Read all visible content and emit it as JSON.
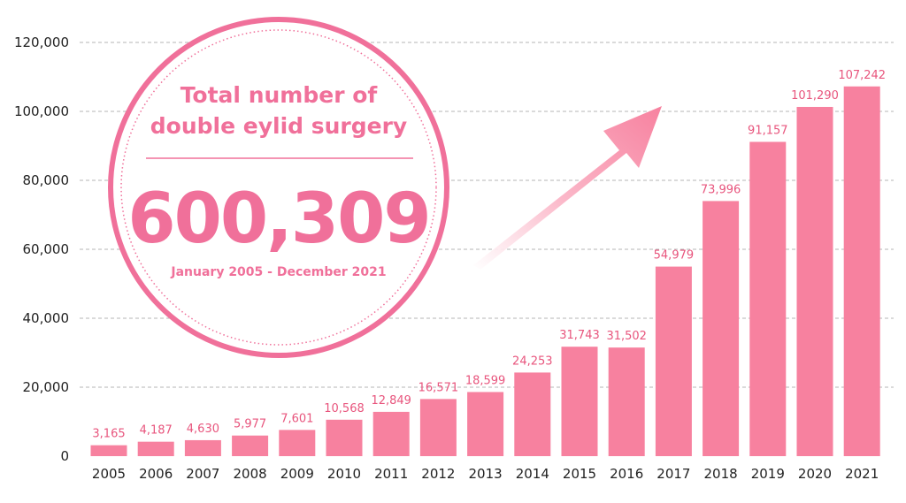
{
  "badge": {
    "title_line1": "Total number of",
    "title_line2": "double eylid surgery",
    "total": "600,309",
    "period": "January 2005 - December 2021"
  },
  "colors": {
    "bar": "#f7819f",
    "label": "#e8557d",
    "badge": "#f0709a",
    "arrow": "#f7819f"
  },
  "chart_data": {
    "type": "bar",
    "title": "",
    "xlabel": "",
    "ylabel": "",
    "ylim": [
      0,
      120000
    ],
    "yticks": [
      0,
      20000,
      40000,
      60000,
      80000,
      100000,
      120000
    ],
    "ytick_labels": [
      "0",
      "20,000",
      "40,000",
      "60,000",
      "80,000",
      "100,000",
      "120,000"
    ],
    "grid": true,
    "categories": [
      "2005",
      "2006",
      "2007",
      "2008",
      "2009",
      "2010",
      "2011",
      "2012",
      "2013",
      "2014",
      "2015",
      "2016",
      "2017",
      "2018",
      "2019",
      "2020",
      "2021"
    ],
    "values": [
      3165,
      4187,
      4630,
      5977,
      7601,
      10568,
      12849,
      16571,
      18599,
      24253,
      31743,
      31502,
      54979,
      73996,
      91157,
      101290,
      107242
    ],
    "data_labels": [
      "3,165",
      "4,187",
      "4,630",
      "5,977",
      "7,601",
      "10,568",
      "12,849",
      "16,571",
      "18,599",
      "24,253",
      "31,743",
      "31,502",
      "54,979",
      "73,996",
      "91,157",
      "101,290",
      "107,242"
    ]
  }
}
